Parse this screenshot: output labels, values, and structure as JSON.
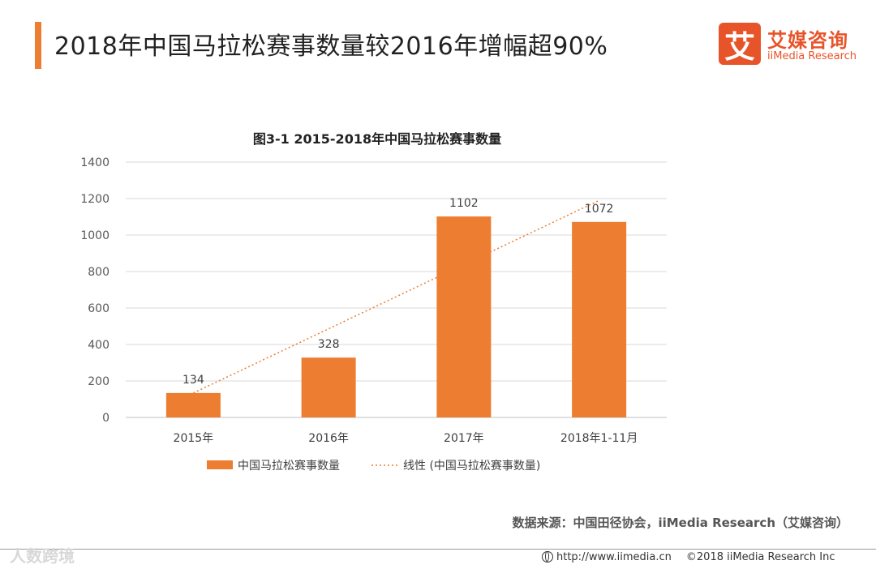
{
  "header": {
    "title": "2018年中国马拉松赛事数量较2016年增幅超90%"
  },
  "logo": {
    "mark": "艾",
    "name_cn": "艾媒咨询",
    "name_en": "iiMedia Research"
  },
  "chart_data": {
    "type": "bar",
    "title": "图3-1 2015-2018年中国马拉松赛事数量",
    "categories": [
      "2015年",
      "2016年",
      "2017年",
      "2018年1-11月"
    ],
    "series": [
      {
        "name": "中国马拉松赛事数量",
        "values": [
          134,
          328,
          1102,
          1072
        ]
      }
    ],
    "trendline": {
      "name": "线性 (中国马拉松赛事数量)",
      "start": 134,
      "end": 1190
    },
    "ylim": [
      0,
      1400
    ],
    "yticks": [
      0,
      200,
      400,
      600,
      800,
      1000,
      1200,
      1400
    ],
    "xlabel": "",
    "ylabel": "",
    "grid": true,
    "legend": "bottom",
    "colors": {
      "bar": "#ed7d31",
      "trend": "#ed7d31",
      "grid": "#d9d9d9"
    }
  },
  "source": "数据来源：中国田径协会，iiMedia Research（艾媒咨询）",
  "watermark": "人数跨境",
  "footer": {
    "url": "http://www.iimedia.cn",
    "copyright": "©2018  iiMedia Research  Inc"
  }
}
